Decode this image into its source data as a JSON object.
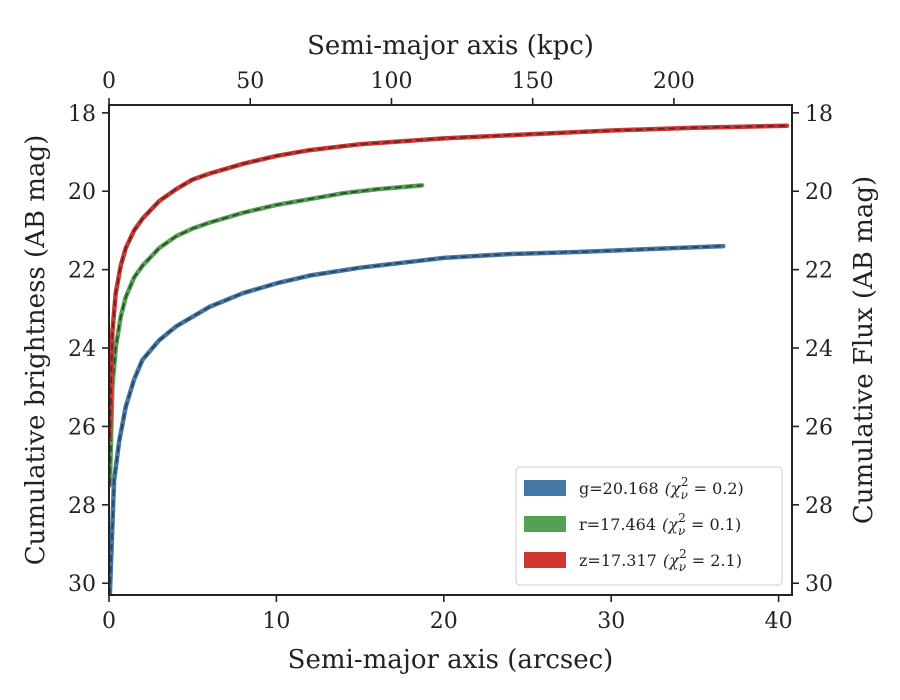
{
  "chart_data": {
    "type": "line",
    "xlabel": "Semi-major axis (arcsec)",
    "ylabel": "Cumulative brightness (AB mag)",
    "top_xlabel": "Semi-major axis (kpc)",
    "right_ylabel": "Cumulative Flux (AB mag)",
    "xlim": [
      0,
      40.8
    ],
    "ylim": [
      30.3,
      17.8
    ],
    "y_inverted": true,
    "top_xlim": [
      0,
      241.8
    ],
    "xticks": [
      "0",
      "10",
      "20",
      "30",
      "40"
    ],
    "yticks": [
      "18",
      "20",
      "22",
      "24",
      "26",
      "28",
      "30"
    ],
    "top_xticks": [
      "0",
      "50",
      "100",
      "150",
      "200"
    ],
    "grid": false,
    "legend_position": "bottom-right",
    "series": [
      {
        "name": "g",
        "label": "g=20.168",
        "chi_label": "(χ",
        "chi_sub": "ν",
        "chi_sup": "2",
        "chi_value": " = 0.2)",
        "color": "#4377a6",
        "model_color": "#2b3d4f",
        "x": [
          0.05,
          0.3,
          0.6,
          1.0,
          1.5,
          2.0,
          3.0,
          4.0,
          5.0,
          6.0,
          8.0,
          10.0,
          12.0,
          15.0,
          18.0,
          20.0,
          24.0,
          28.0,
          32.0,
          36.7
        ],
        "y": [
          30.3,
          27.4,
          26.4,
          25.5,
          24.8,
          24.3,
          23.8,
          23.45,
          23.2,
          22.95,
          22.6,
          22.35,
          22.15,
          21.95,
          21.8,
          21.7,
          21.6,
          21.55,
          21.48,
          21.4
        ]
      },
      {
        "name": "r",
        "label": "r=17.464",
        "chi_label": "(χ",
        "chi_sub": "ν",
        "chi_sup": "2",
        "chi_value": " = 0.1)",
        "color": "#55a153",
        "model_color": "#2a3f2a",
        "x": [
          0.05,
          0.2,
          0.4,
          0.7,
          1.0,
          1.5,
          2.0,
          3.0,
          4.0,
          5.0,
          6.0,
          8.0,
          10.0,
          12.0,
          14.0,
          16.0,
          18.7
        ],
        "y": [
          27.5,
          25.0,
          24.0,
          23.2,
          22.7,
          22.2,
          21.9,
          21.45,
          21.15,
          20.95,
          20.8,
          20.55,
          20.35,
          20.2,
          20.05,
          19.95,
          19.85
        ]
      },
      {
        "name": "z",
        "label": "z=17.317",
        "chi_label": "(χ",
        "chi_sub": "ν",
        "chi_sup": "2",
        "chi_value": " = 2.1)",
        "color": "#d03530",
        "model_color": "#4a2a2a",
        "x": [
          0.05,
          0.2,
          0.4,
          0.7,
          1.0,
          1.5,
          2.0,
          3.0,
          4.0,
          5.0,
          6.0,
          8.0,
          10.0,
          12.0,
          15.0,
          20.0,
          25.0,
          30.0,
          35.0,
          40.5
        ],
        "y": [
          26.3,
          23.6,
          22.6,
          21.9,
          21.45,
          21.0,
          20.7,
          20.25,
          19.95,
          19.7,
          19.55,
          19.3,
          19.1,
          18.95,
          18.8,
          18.65,
          18.55,
          18.45,
          18.38,
          18.33
        ]
      }
    ]
  }
}
